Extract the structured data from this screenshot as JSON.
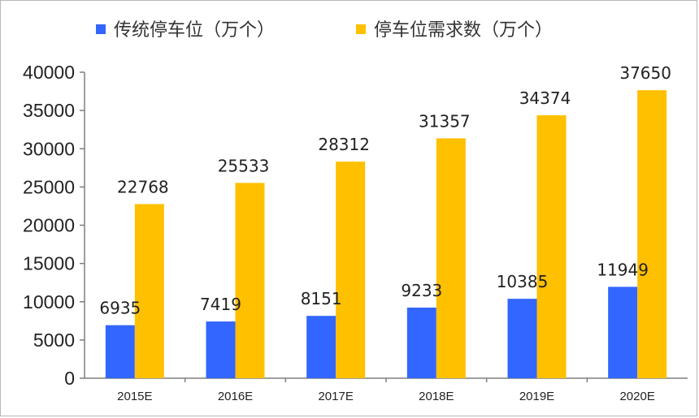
{
  "chart_data": {
    "type": "bar",
    "categories": [
      "2015E",
      "2016E",
      "2017E",
      "2018E",
      "2019E",
      "2020E"
    ],
    "series": [
      {
        "name": "传统停车位（万个）",
        "values": [
          6935,
          7419,
          8151,
          9233,
          10385,
          11949
        ],
        "color": "#3366ff"
      },
      {
        "name": "停车位需求数（万个）",
        "values": [
          22768,
          25533,
          28312,
          31357,
          34374,
          37650
        ],
        "color": "#ffc000"
      }
    ],
    "ylim": [
      0,
      40000
    ],
    "yticks": [
      0,
      5000,
      10000,
      15000,
      20000,
      25000,
      30000,
      35000,
      40000
    ],
    "grid": false,
    "legend_position": "top",
    "data_labels": true
  }
}
